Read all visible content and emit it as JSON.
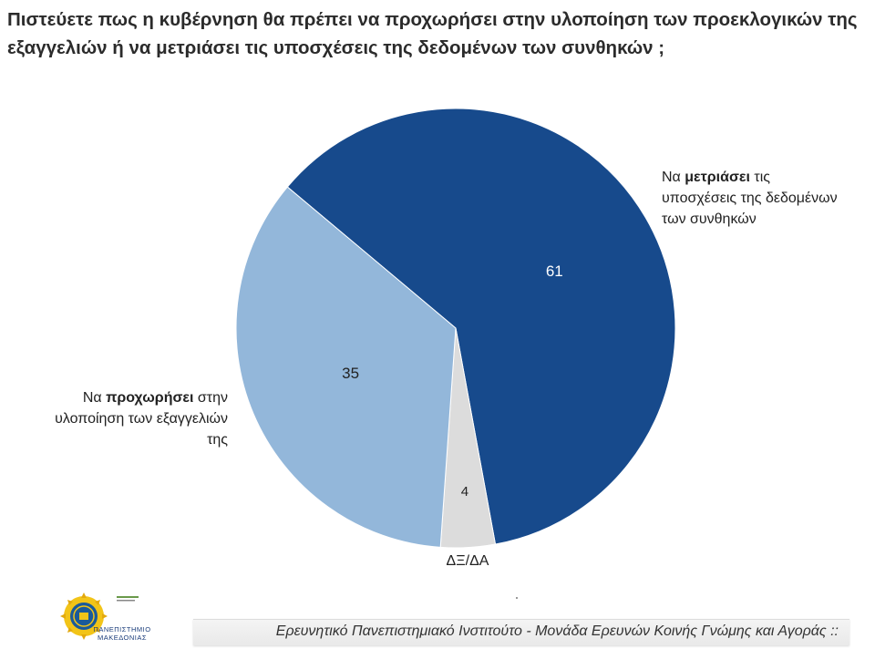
{
  "title": "Πιστεύετε πως η κυβέρνηση θα πρέπει να προχωρήσει στην υλοποίηση των προεκλογικών της εξαγγελιών ή να μετριάσει τις υποσχέσεις της δεδομένων των συνθηκών ;",
  "chart_data": {
    "type": "pie",
    "title": "Πιστεύετε πως η κυβέρνηση θα πρέπει να προχωρήσει στην υλοποίηση των προεκλογικών της εξαγγελιών ή να μετριάσει τις υποσχέσεις της δεδομένων των συνθηκών ;",
    "slices": [
      {
        "label": "Να μετριάσει τις υποσχέσεις της δεδομένων των συνθηκών",
        "value": 61,
        "color": "#174a8c"
      },
      {
        "label": "ΔΞ/ΔΑ",
        "value": 4,
        "color": "#dcdcdc"
      },
      {
        "label": "Να προχωρήσει στην υλοποίηση των εξαγγελιών της",
        "value": 35,
        "color": "#93b7da"
      }
    ]
  },
  "labels": {
    "moderate_pre": "Να ",
    "moderate_bold": "μετριάσει",
    "moderate_rest": " τις υποσχέσεις της δεδομένων των συνθηκών",
    "proceed_pre": "Να ",
    "proceed_bold": "προχωρήσει",
    "proceed_rest": " στην υλοποίηση των εξαγγελιών της",
    "dk": "ΔΞ/ΔΑ"
  },
  "logo": {
    "icon": "university-seal-icon",
    "caption_line1": "ΠΑΝΕΠΙΣΤΗΜΙΟ",
    "caption_line2": "ΜΑΚΕΔΟΝΙΑΣ"
  },
  "footer": "Ερευνητικό Πανεπιστημιακό Ινστιτούτο - Μονάδα Ερευνών Κοινής Γνώμης και Αγοράς ::"
}
